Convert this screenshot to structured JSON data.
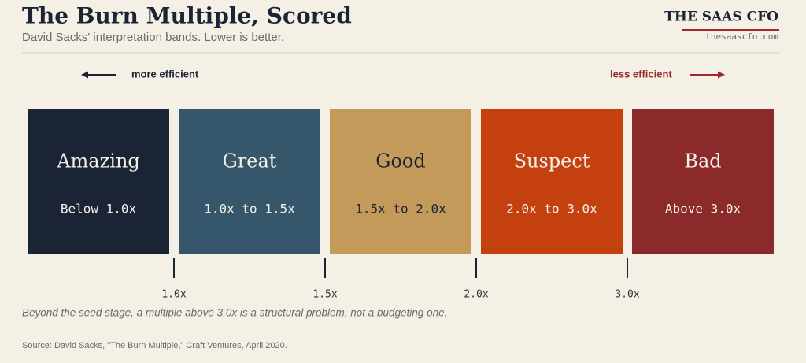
{
  "header": {
    "title": "The Burn Multiple, Scored",
    "subtitle": "David Sacks' interpretation bands. Lower is better."
  },
  "brand": {
    "name": "THE SAAS CFO",
    "url": "thesaascfo.com"
  },
  "direction": {
    "left": "more efficient",
    "right": "less efficient"
  },
  "bands": [
    {
      "label": "Amazing",
      "range": "Below 1.0x"
    },
    {
      "label": "Great",
      "range": "1.0x to 1.5x"
    },
    {
      "label": "Good",
      "range": "1.5x to 2.0x"
    },
    {
      "label": "Suspect",
      "range": "2.0x to 3.0x"
    },
    {
      "label": "Bad",
      "range": "Above 3.0x"
    }
  ],
  "thresholds": [
    "1.0x",
    "1.5x",
    "2.0x",
    "3.0x"
  ],
  "note": "Beyond the seed stage, a multiple above 3.0x is a structural problem, not a budgeting one.",
  "source": "Source: David Sacks, \"The Burn Multiple,\" Craft Ventures, April 2020."
}
